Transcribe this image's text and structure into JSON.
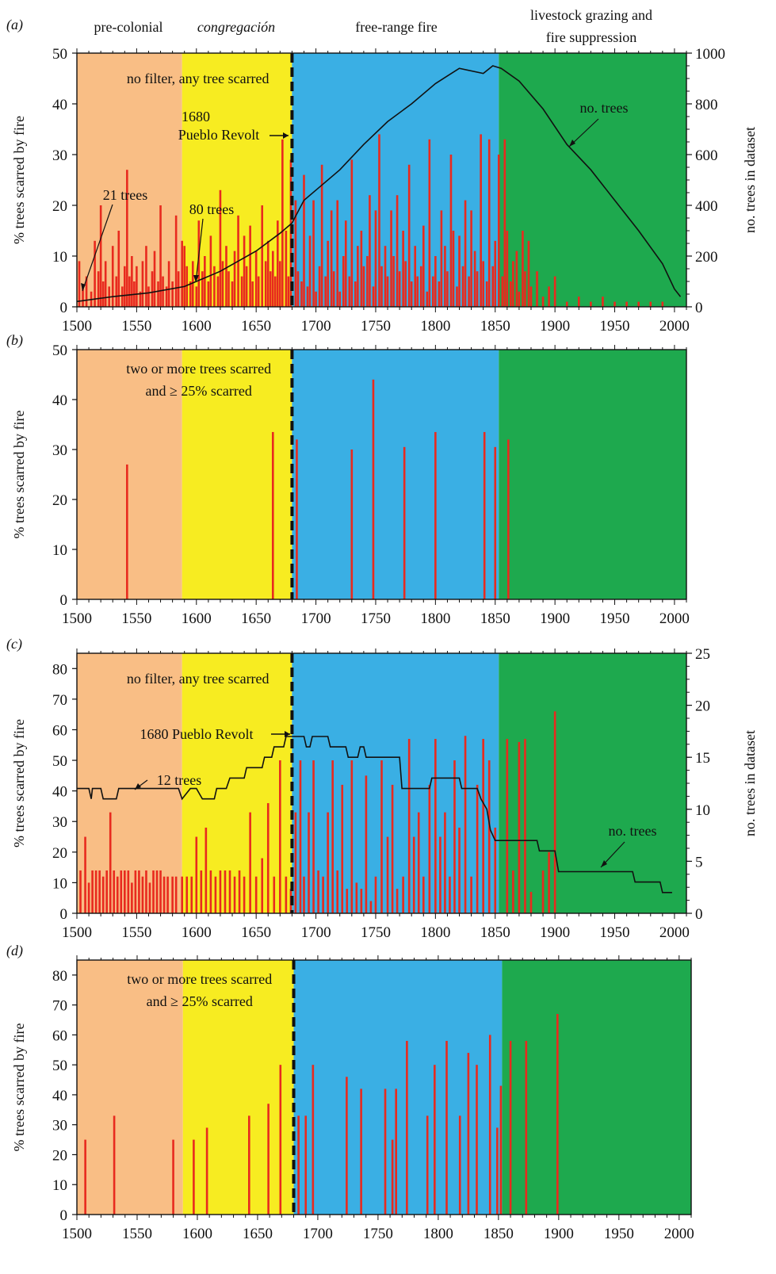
{
  "colors": {
    "precolonial": "#F9BE85",
    "congregacion": "#F7EC21",
    "free_range": "#3AAFE4",
    "livestock": "#1EA94E",
    "bar": "#E82A1E",
    "line": "#111111"
  },
  "periods": [
    {
      "label": "pre-colonial",
      "italic": false,
      "start": 1500,
      "end": 1588,
      "color": "#F9BE85"
    },
    {
      "label": "congregación",
      "italic": true,
      "start": 1588,
      "end": 1680,
      "color": "#F7EC21"
    },
    {
      "label": "free-range fire",
      "italic": false,
      "start": 1680,
      "end": 1853,
      "color": "#3AAFE4"
    },
    {
      "label": "livestock grazing and fire suppression",
      "label_lines": [
        "livestock grazing and",
        "fire suppression"
      ],
      "italic": false,
      "start": 1853,
      "end": 2010,
      "color": "#1EA94E"
    }
  ],
  "revolt_year": 1680,
  "chart_data": [
    {
      "panel": "(a)",
      "type": "bar",
      "filter_label": "no filter, any tree scarred",
      "ylabel": "% trees scarred by fire",
      "y2label": "no. trees in dataset",
      "xlim": [
        1500,
        2010
      ],
      "ylim": [
        0,
        50
      ],
      "y2lim": [
        0,
        1000
      ],
      "xticks": [
        1500,
        1550,
        1600,
        1650,
        1700,
        1750,
        1800,
        1850,
        1900,
        1950,
        2000
      ],
      "yticks": [
        0,
        10,
        20,
        30,
        40,
        50
      ],
      "y2ticks": [
        0,
        200,
        400,
        600,
        800,
        1000
      ],
      "annotations": [
        {
          "text": "1680",
          "year": 1680
        },
        {
          "text": "Pueblo Revolt",
          "year": 1680
        },
        {
          "text": "21 trees",
          "year": 1502
        },
        {
          "text": "80 trees",
          "year": 1600
        },
        {
          "text": "no. trees",
          "year": 1910
        }
      ],
      "bars": {
        "x": [
          1502,
          1505,
          1508,
          1512,
          1515,
          1518,
          1520,
          1522,
          1524,
          1527,
          1530,
          1533,
          1535,
          1538,
          1540,
          1542,
          1544,
          1546,
          1548,
          1550,
          1553,
          1555,
          1558,
          1560,
          1563,
          1565,
          1568,
          1570,
          1572,
          1575,
          1577,
          1580,
          1583,
          1585,
          1588,
          1590,
          1592,
          1595,
          1597,
          1600,
          1602,
          1605,
          1607,
          1610,
          1612,
          1615,
          1618,
          1620,
          1622,
          1625,
          1627,
          1630,
          1632,
          1635,
          1638,
          1640,
          1642,
          1645,
          1647,
          1650,
          1652,
          1655,
          1658,
          1660,
          1662,
          1664,
          1666,
          1668,
          1670,
          1672,
          1675,
          1677,
          1679,
          1683,
          1685,
          1688,
          1690,
          1693,
          1695,
          1698,
          1700,
          1703,
          1705,
          1708,
          1710,
          1713,
          1715,
          1718,
          1720,
          1723,
          1725,
          1728,
          1730,
          1733,
          1735,
          1738,
          1740,
          1743,
          1745,
          1748,
          1750,
          1753,
          1755,
          1758,
          1760,
          1763,
          1765,
          1768,
          1770,
          1773,
          1775,
          1778,
          1780,
          1783,
          1785,
          1788,
          1790,
          1793,
          1795,
          1798,
          1800,
          1803,
          1805,
          1808,
          1810,
          1813,
          1815,
          1818,
          1820,
          1823,
          1825,
          1828,
          1830,
          1833,
          1835,
          1838,
          1840,
          1843,
          1845,
          1848,
          1850,
          1853,
          1856,
          1858,
          1860,
          1863,
          1865,
          1868,
          1870,
          1873,
          1875,
          1878,
          1880,
          1885,
          1890,
          1895,
          1900,
          1910,
          1920,
          1930,
          1940,
          1950,
          1960,
          1970,
          1980,
          1990
        ],
        "values": [
          9,
          4,
          6,
          3,
          13,
          7,
          20,
          5,
          9,
          4,
          12,
          6,
          15,
          4,
          8,
          27,
          6,
          10,
          5,
          8,
          3,
          9,
          12,
          4,
          7,
          11,
          5,
          20,
          6,
          4,
          9,
          5,
          18,
          7,
          13,
          12,
          8,
          5,
          9,
          4,
          17,
          7,
          10,
          5,
          14,
          8,
          6,
          23,
          9,
          12,
          7,
          5,
          11,
          18,
          6,
          14,
          8,
          16,
          5,
          11,
          6,
          20,
          9,
          13,
          7,
          11,
          6,
          17,
          9,
          33,
          15,
          6,
          29,
          21,
          7,
          5,
          26,
          4,
          14,
          21,
          3,
          8,
          28,
          6,
          13,
          19,
          7,
          21,
          3,
          10,
          17,
          6,
          29,
          5,
          12,
          15,
          8,
          10,
          22,
          4,
          19,
          34,
          8,
          12,
          6,
          19,
          10,
          22,
          7,
          15,
          9,
          28,
          5,
          12,
          6,
          8,
          16,
          3,
          33,
          6,
          10,
          5,
          19,
          12,
          7,
          30,
          15,
          4,
          14,
          8,
          21,
          6,
          19,
          11,
          7,
          34,
          9,
          5,
          33,
          8,
          13,
          30,
          6,
          33,
          15,
          5,
          9,
          11,
          3,
          15,
          7,
          13,
          4,
          7,
          2,
          4,
          6,
          1,
          2,
          1,
          2,
          1,
          1,
          1,
          1,
          1
        ]
      },
      "line": {
        "name": "no. trees",
        "points": [
          [
            1500,
            21
          ],
          [
            1530,
            40
          ],
          [
            1560,
            55
          ],
          [
            1590,
            80
          ],
          [
            1620,
            140
          ],
          [
            1650,
            220
          ],
          [
            1670,
            290
          ],
          [
            1680,
            330
          ],
          [
            1690,
            420
          ],
          [
            1700,
            460
          ],
          [
            1720,
            540
          ],
          [
            1740,
            640
          ],
          [
            1760,
            730
          ],
          [
            1780,
            800
          ],
          [
            1800,
            880
          ],
          [
            1810,
            910
          ],
          [
            1820,
            940
          ],
          [
            1840,
            920
          ],
          [
            1848,
            950
          ],
          [
            1855,
            940
          ],
          [
            1870,
            890
          ],
          [
            1890,
            780
          ],
          [
            1910,
            640
          ],
          [
            1930,
            540
          ],
          [
            1950,
            420
          ],
          [
            1970,
            300
          ],
          [
            1990,
            170
          ],
          [
            2000,
            70
          ],
          [
            2005,
            40
          ]
        ]
      }
    },
    {
      "panel": "(b)",
      "type": "bar",
      "filter_label_lines": [
        "two or more trees scarred",
        "and ≥ 25% scarred"
      ],
      "ylabel": "% trees scarred by fire",
      "xlim": [
        1500,
        2010
      ],
      "ylim": [
        0,
        50
      ],
      "xticks": [
        1500,
        1550,
        1600,
        1650,
        1700,
        1750,
        1800,
        1850,
        1900,
        1950,
        2000
      ],
      "yticks": [
        0,
        10,
        20,
        30,
        40,
        50
      ],
      "bars": {
        "x": [
          1542,
          1664,
          1684,
          1730,
          1748,
          1774,
          1800,
          1841,
          1850,
          1861
        ],
        "values": [
          27,
          33.5,
          32,
          30,
          44,
          30.5,
          33.5,
          33.5,
          30.5,
          32
        ]
      }
    },
    {
      "panel": "(c)",
      "type": "bar",
      "filter_label": "no filter, any tree scarred",
      "ylabel": "% trees scarred by fire",
      "y2label": "no. trees in dataset",
      "xlim": [
        1500,
        2010
      ],
      "ylim": [
        0,
        85
      ],
      "y2lim": [
        0,
        25
      ],
      "xticks": [
        1500,
        1550,
        1600,
        1650,
        1700,
        1750,
        1800,
        1850,
        1900,
        1950,
        2000
      ],
      "yticks": [
        0,
        10,
        20,
        30,
        40,
        50,
        60,
        70,
        80
      ],
      "y2ticks": [
        0,
        5,
        10,
        15,
        20,
        25
      ],
      "annotations": [
        {
          "text": "1680 Pueblo Revolt",
          "year": 1680
        },
        {
          "text": "12 trees",
          "year": 1545
        },
        {
          "text": "no. trees",
          "year": 1935
        }
      ],
      "bars": {
        "x": [
          1503,
          1507,
          1510,
          1513,
          1516,
          1519,
          1522,
          1525,
          1528,
          1531,
          1534,
          1537,
          1540,
          1543,
          1546,
          1549,
          1552,
          1555,
          1558,
          1561,
          1564,
          1567,
          1570,
          1573,
          1576,
          1580,
          1583,
          1588,
          1592,
          1596,
          1600,
          1604,
          1608,
          1612,
          1616,
          1620,
          1624,
          1628,
          1632,
          1636,
          1640,
          1645,
          1650,
          1655,
          1660,
          1665,
          1670,
          1675,
          1679,
          1683,
          1687,
          1690,
          1694,
          1698,
          1702,
          1706,
          1710,
          1714,
          1718,
          1722,
          1726,
          1730,
          1734,
          1738,
          1742,
          1746,
          1750,
          1755,
          1760,
          1764,
          1768,
          1773,
          1778,
          1782,
          1786,
          1790,
          1795,
          1800,
          1804,
          1808,
          1812,
          1816,
          1820,
          1825,
          1830,
          1835,
          1840,
          1845,
          1850,
          1860,
          1865,
          1870,
          1875,
          1880,
          1890,
          1895,
          1900
        ],
        "values": [
          14,
          25,
          10,
          14,
          14,
          14,
          12,
          14,
          33,
          14,
          12,
          14,
          14,
          14,
          10,
          14,
          14,
          12,
          14,
          10,
          14,
          14,
          14,
          12,
          12,
          12,
          12,
          12,
          12,
          12,
          25,
          14,
          28,
          14,
          12,
          14,
          14,
          14,
          12,
          14,
          12,
          33,
          12,
          18,
          36,
          12,
          50,
          12,
          8,
          33,
          50,
          12,
          33,
          50,
          14,
          12,
          33,
          50,
          14,
          42,
          8,
          50,
          10,
          8,
          45,
          4,
          12,
          50,
          25,
          42,
          8,
          12,
          57,
          25,
          33,
          12,
          42,
          57,
          25,
          33,
          12,
          50,
          28,
          58,
          12,
          42,
          57,
          50,
          28,
          57,
          14,
          56,
          57,
          7,
          14,
          20,
          66
        ]
      },
      "line": {
        "name": "no. trees",
        "points": [
          [
            1500,
            12
          ],
          [
            1510,
            12
          ],
          [
            1512,
            11
          ],
          [
            1513,
            12
          ],
          [
            1520,
            12
          ],
          [
            1522,
            11
          ],
          [
            1533,
            11
          ],
          [
            1535,
            12
          ],
          [
            1555,
            12
          ],
          [
            1560,
            12
          ],
          [
            1585,
            12
          ],
          [
            1588,
            11
          ],
          [
            1595,
            12
          ],
          [
            1600,
            12
          ],
          [
            1605,
            11
          ],
          [
            1615,
            11
          ],
          [
            1617,
            12
          ],
          [
            1625,
            12
          ],
          [
            1628,
            13
          ],
          [
            1640,
            13
          ],
          [
            1642,
            14
          ],
          [
            1655,
            14
          ],
          [
            1657,
            15
          ],
          [
            1663,
            15
          ],
          [
            1665,
            16
          ],
          [
            1673,
            16
          ],
          [
            1675,
            17
          ],
          [
            1690,
            17
          ],
          [
            1692,
            16
          ],
          [
            1695,
            16
          ],
          [
            1697,
            17
          ],
          [
            1710,
            17
          ],
          [
            1712,
            16
          ],
          [
            1725,
            16
          ],
          [
            1727,
            15
          ],
          [
            1735,
            15
          ],
          [
            1737,
            16
          ],
          [
            1740,
            16
          ],
          [
            1742,
            15
          ],
          [
            1770,
            15
          ],
          [
            1772,
            12
          ],
          [
            1795,
            12
          ],
          [
            1797,
            13
          ],
          [
            1820,
            13
          ],
          [
            1822,
            12
          ],
          [
            1835,
            12
          ],
          [
            1838,
            11
          ],
          [
            1843,
            10
          ],
          [
            1846,
            8
          ],
          [
            1850,
            7
          ],
          [
            1885,
            7
          ],
          [
            1887,
            6
          ],
          [
            1900,
            6
          ],
          [
            1903,
            4
          ],
          [
            1965,
            4
          ],
          [
            1967,
            3
          ],
          [
            1988,
            3
          ],
          [
            1990,
            2
          ],
          [
            1998,
            2
          ]
        ]
      }
    },
    {
      "panel": "(d)",
      "type": "bar",
      "filter_label_lines": [
        "two or more trees scarred",
        "and ≥ 25% scarred"
      ],
      "ylabel": "% trees scarred by fire",
      "xlim": [
        1500,
        2010
      ],
      "ylim": [
        0,
        85
      ],
      "xticks": [
        1500,
        1550,
        1600,
        1650,
        1700,
        1750,
        1800,
        1850,
        1900,
        1950,
        2000
      ],
      "yticks": [
        0,
        10,
        20,
        30,
        40,
        50,
        60,
        70,
        80
      ],
      "bars": {
        "x": [
          1507,
          1531,
          1580,
          1597,
          1608,
          1643,
          1659,
          1669,
          1684,
          1690,
          1696,
          1724,
          1736,
          1756,
          1762,
          1765,
          1774,
          1791,
          1797,
          1807,
          1818,
          1825,
          1832,
          1843,
          1849,
          1852,
          1860,
          1873,
          1899
        ],
        "values": [
          25,
          33,
          25,
          25,
          29,
          33,
          37,
          50,
          33,
          33,
          50,
          46,
          42,
          42,
          25,
          42,
          58,
          33,
          50,
          58,
          33,
          54,
          50,
          60,
          29,
          43,
          58,
          58,
          67
        ]
      }
    }
  ]
}
